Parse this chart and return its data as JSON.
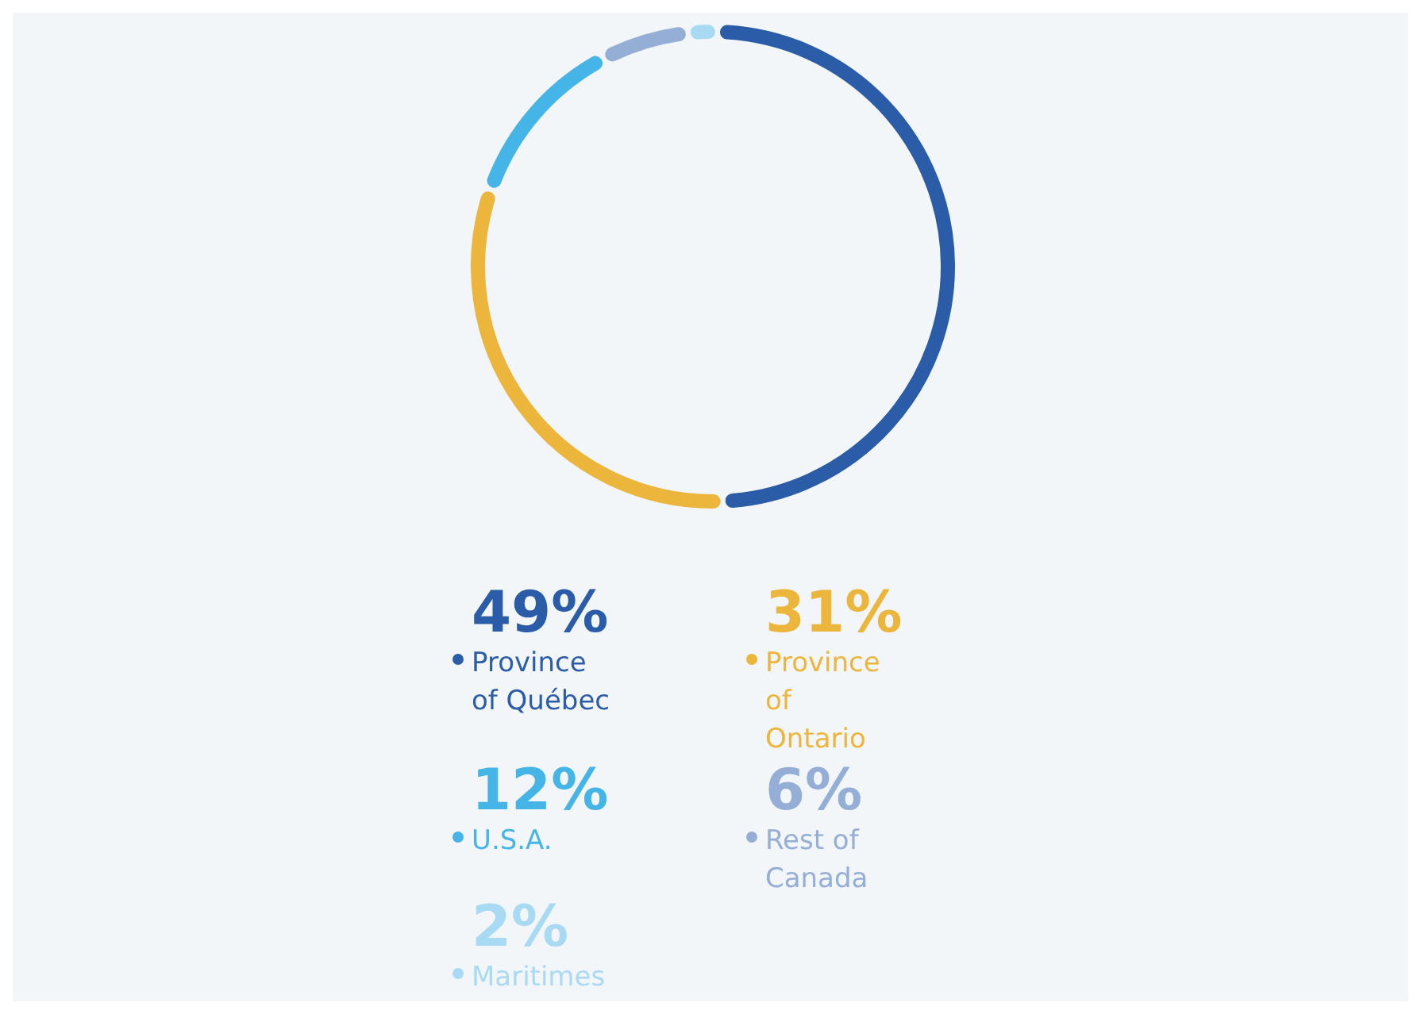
{
  "chart_data": {
    "type": "donut",
    "categories": [
      "Province of Québec",
      "Province of Ontario",
      "U.S.A.",
      "Rest of Canada",
      "Maritimes"
    ],
    "values": [
      49,
      31,
      12,
      6,
      2
    ],
    "colors": [
      "#2a5ca8",
      "#ecb53b",
      "#45b4e6",
      "#94aed6",
      "#a8daf4"
    ],
    "value_labels": [
      "49%",
      "31%",
      "12%",
      "6%",
      "2%"
    ],
    "legend": "bottom"
  }
}
